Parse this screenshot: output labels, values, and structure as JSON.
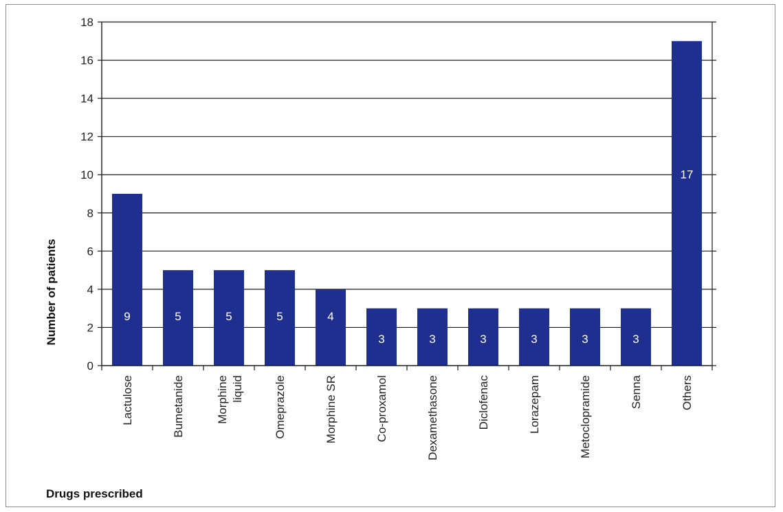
{
  "chart_data": {
    "type": "bar",
    "categories": [
      "Lactulose",
      "Bumetanide",
      "Morphine liquid",
      "Omeprazole",
      "Morphine SR",
      "Co-proxamol",
      "Dexamethasone",
      "Diclofenac",
      "Lorazepam",
      "Metoclopramide",
      "Senna",
      "Others"
    ],
    "values": [
      9,
      5,
      5,
      5,
      4,
      3,
      3,
      3,
      3,
      3,
      3,
      17
    ],
    "data_labels": [
      "9",
      "5",
      "5",
      "5",
      "4",
      "3",
      "3",
      "3",
      "3",
      "3",
      "3",
      "17"
    ],
    "title": "",
    "xlabel": "Drugs prescribed",
    "ylabel": "Number of patients",
    "ylim": [
      0,
      18
    ],
    "yticks": [
      0,
      2,
      4,
      6,
      8,
      10,
      12,
      14,
      16,
      18
    ],
    "grid": true,
    "bar_color": "#1f2f8f"
  }
}
